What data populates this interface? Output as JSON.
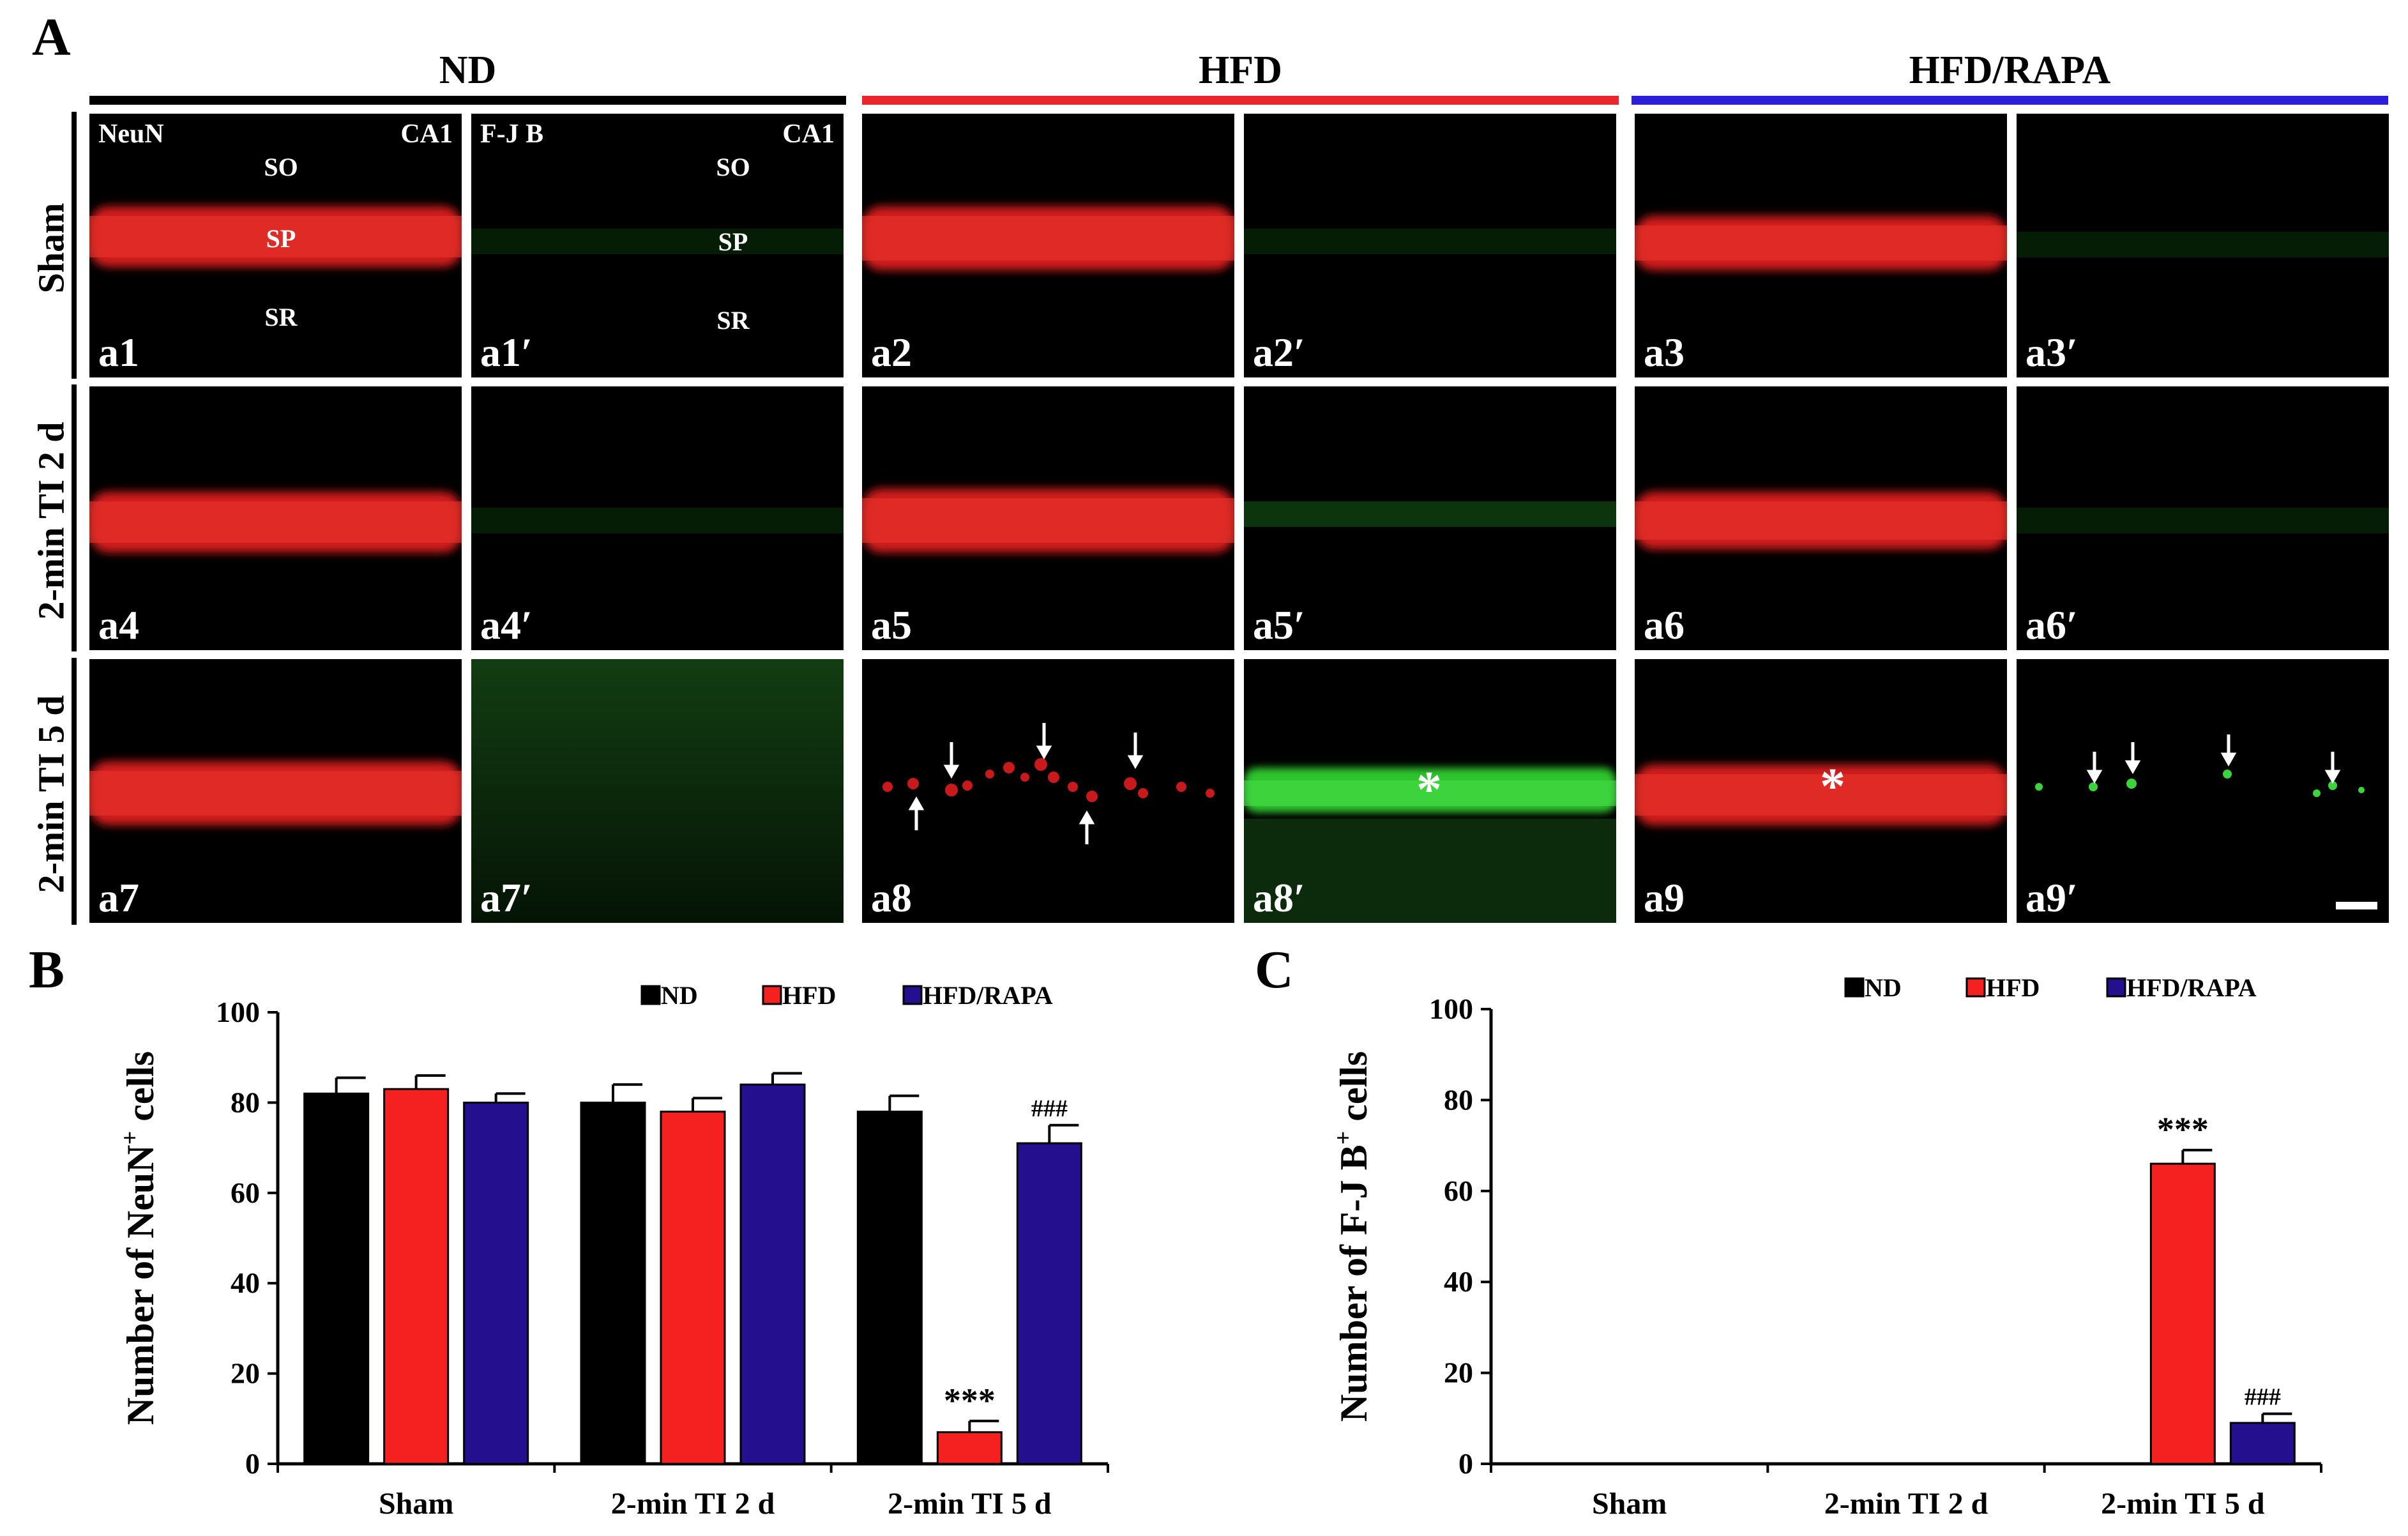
{
  "figure": {
    "panel_labels": {
      "a": "A",
      "b": "B",
      "c": "C"
    },
    "groups": [
      {
        "title": "ND",
        "color": "#000000"
      },
      {
        "title": "HFD",
        "color": "#e8262b"
      },
      {
        "title": "HFD/RAPA",
        "color": "#2b1ed9"
      }
    ],
    "rows": [
      "Sham",
      "2-min TI 2 d",
      "2-min TI 5 d"
    ],
    "micrographs": [
      [
        "a1",
        "a1′",
        "a2",
        "a2′",
        "a3",
        "a3′"
      ],
      [
        "a4",
        "a4′",
        "a5",
        "a5′",
        "a6",
        "a6′"
      ],
      [
        "a7",
        "a7′",
        "a8",
        "a8′",
        "a9",
        "a9′"
      ]
    ],
    "stain_labels": {
      "neun": "NeuN",
      "fjb": "F-J B",
      "region": "CA1"
    },
    "layer_labels": {
      "so": "SO",
      "sp": "SP",
      "sr": "SR"
    },
    "markers": {
      "asterisk": "*"
    },
    "colors": {
      "neun": "#d11a1a",
      "fjb": "#3bd43b",
      "nd": "#000000",
      "hfd": "#f52020",
      "rapa": "#24108f"
    }
  },
  "chart_data": [
    {
      "id": "B",
      "type": "bar",
      "ylabel": "Number of NeuN⁺ cells",
      "ylabel_main": "Number of NeuN",
      "ylabel_sup": "+",
      "ylabel_end": " cells",
      "ylim": [
        0,
        100
      ],
      "yticks": [
        0,
        20,
        40,
        60,
        80,
        100
      ],
      "categories": [
        "Sham",
        "2-min TI 2 d",
        "2-min TI 5 d"
      ],
      "legend_position": "top",
      "series": [
        {
          "name": "ND",
          "color": "#000000",
          "values": [
            82,
            80,
            78
          ],
          "errors": [
            3.5,
            4,
            3.5
          ]
        },
        {
          "name": "HFD",
          "color": "#f52020",
          "values": [
            83,
            78,
            7
          ],
          "errors": [
            3,
            3,
            2.5
          ]
        },
        {
          "name": "HFD/RAPA",
          "color": "#24108f",
          "values": [
            80,
            84,
            71
          ],
          "errors": [
            2,
            2.5,
            4
          ]
        }
      ],
      "annotations": [
        {
          "text": "***",
          "category": 2,
          "series": 1
        },
        {
          "text": "###",
          "category": 2,
          "series": 2
        }
      ]
    },
    {
      "id": "C",
      "type": "bar",
      "ylabel": "Number of F-J B⁺ cells",
      "ylabel_main": "Number of F-J B",
      "ylabel_sup": "+",
      "ylabel_end": " cells",
      "ylim": [
        0,
        100
      ],
      "yticks": [
        0,
        20,
        40,
        60,
        80,
        100
      ],
      "categories": [
        "Sham",
        "2-min TI 2 d",
        "2-min TI 5 d"
      ],
      "legend_position": "top",
      "series": [
        {
          "name": "ND",
          "color": "#000000",
          "values": [
            0,
            0,
            0
          ],
          "errors": [
            0,
            0,
            0
          ]
        },
        {
          "name": "HFD",
          "color": "#f52020",
          "values": [
            0,
            0,
            66
          ],
          "errors": [
            0,
            0,
            3
          ]
        },
        {
          "name": "HFD/RAPA",
          "color": "#24108f",
          "values": [
            0,
            0,
            9
          ],
          "errors": [
            0,
            0,
            2
          ]
        }
      ],
      "annotations": [
        {
          "text": "***",
          "category": 2,
          "series": 1
        },
        {
          "text": "###",
          "category": 2,
          "series": 2
        }
      ]
    }
  ]
}
